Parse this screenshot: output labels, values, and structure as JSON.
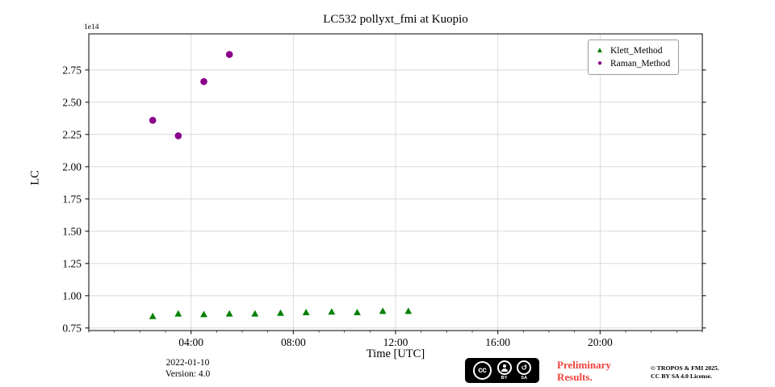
{
  "figure": {
    "title": "LC532 pollyxt_fmi at Kuopio",
    "offset_text": "1e14"
  },
  "footer": {
    "date": "2022-01-10",
    "version": "Version: 4.0",
    "preliminary_line1": "Preliminary",
    "preliminary_line2": "Results.",
    "preliminary_color": "#f0413c",
    "copyright_line1": "© TROPOS & FMI 2025.",
    "copyright_line2": "CC BY SA 4.0 License.",
    "cc_badge": {
      "cc": "cc",
      "by": "BY",
      "sa": "SA"
    }
  },
  "chart_data": {
    "type": "scatter",
    "title": "LC532 pollyxt_fmi at Kuopio",
    "xlabel": "Time [UTC]",
    "ylabel": "LC",
    "y_offset_text": "1e14",
    "y_unit_multiplier": 100000000000000.0,
    "grid": true,
    "grid_color": "#d4d4d4",
    "legend_position": "upper right",
    "xlim": [
      0,
      24
    ],
    "ylim": [
      0.73,
      3.03
    ],
    "x_ticks": [
      {
        "value": 4,
        "label": "04:00"
      },
      {
        "value": 8,
        "label": "08:00"
      },
      {
        "value": 12,
        "label": "12:00"
      },
      {
        "value": 16,
        "label": "16:00"
      },
      {
        "value": 20,
        "label": "20:00"
      }
    ],
    "y_ticks": [
      {
        "value": 0.75,
        "label": "0.75"
      },
      {
        "value": 1.0,
        "label": "1.00"
      },
      {
        "value": 1.25,
        "label": "1.25"
      },
      {
        "value": 1.5,
        "label": "1.50"
      },
      {
        "value": 1.75,
        "label": "1.75"
      },
      {
        "value": 2.0,
        "label": "2.00"
      },
      {
        "value": 2.25,
        "label": "2.25"
      },
      {
        "value": 2.5,
        "label": "2.50"
      },
      {
        "value": 2.75,
        "label": "2.75"
      }
    ],
    "series": [
      {
        "name": "Klett_Method",
        "marker": "triangle",
        "color": "#008000",
        "x_hours": [
          2.5,
          3.5,
          4.5,
          5.5,
          6.5,
          7.5,
          8.5,
          9.5,
          10.5,
          11.5,
          12.5
        ],
        "y": [
          0.84,
          0.86,
          0.855,
          0.86,
          0.86,
          0.865,
          0.87,
          0.875,
          0.87,
          0.88,
          0.88
        ]
      },
      {
        "name": "Raman_Method",
        "marker": "circle",
        "color": "#8b008b",
        "x_hours": [
          2.5,
          3.5,
          4.5,
          5.5
        ],
        "y": [
          2.36,
          2.24,
          2.66,
          2.87
        ]
      }
    ]
  }
}
